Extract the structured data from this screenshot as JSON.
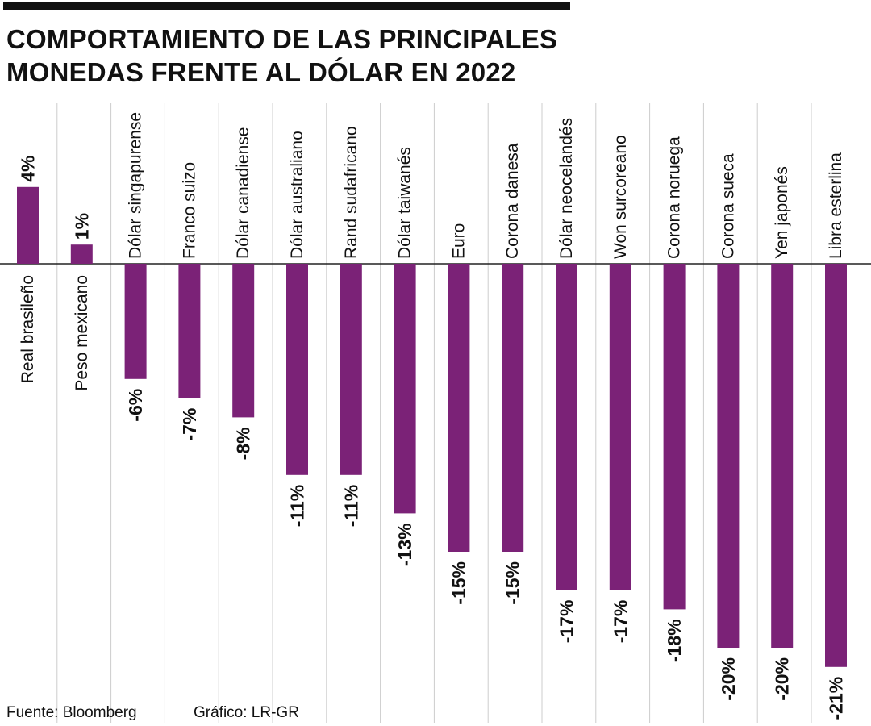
{
  "title_lines": [
    "COMPORTAMIENTO DE LAS PRINCIPALES",
    "MONEDAS FRENTE AL DÓLAR EN 2022"
  ],
  "source": "Fuente: Bloomberg",
  "credit": "Gráfico: LR-GR",
  "colors": {
    "bar": "#7b2277",
    "gridline": "#cccccc",
    "baseline": "#222222",
    "text": "#111111"
  },
  "chart_data": {
    "type": "bar",
    "orientation": "vertical",
    "categories": [
      "Real brasileño",
      "Peso mexicano",
      "Dólar singapurense",
      "Franco suizo",
      "Dólar canadiense",
      "Dólar australiano",
      "Rand sudafricano",
      "Dólar taiwanés",
      "Euro",
      "Corona danesa",
      "Dólar neocelandés",
      "Won surcoreano",
      "Corona noruega",
      "Corona sueca",
      "Yen japonés",
      "Libra esterlina"
    ],
    "values": [
      4,
      1,
      -6,
      -7,
      -8,
      -11,
      -11,
      -13,
      -15,
      -15,
      -17,
      -17,
      -18,
      -20,
      -20,
      -21
    ],
    "value_labels": [
      "4%",
      "1%",
      "-6%",
      "-7%",
      "-8%",
      "-11%",
      "-11%",
      "-13%",
      "-15%",
      "-15%",
      "-17%",
      "-17%",
      "-18%",
      "-20%",
      "-20%",
      "-21%"
    ],
    "unit": "%",
    "ylim": [
      -21,
      4
    ],
    "grid": "vertical separators between categories",
    "legend": "none"
  }
}
